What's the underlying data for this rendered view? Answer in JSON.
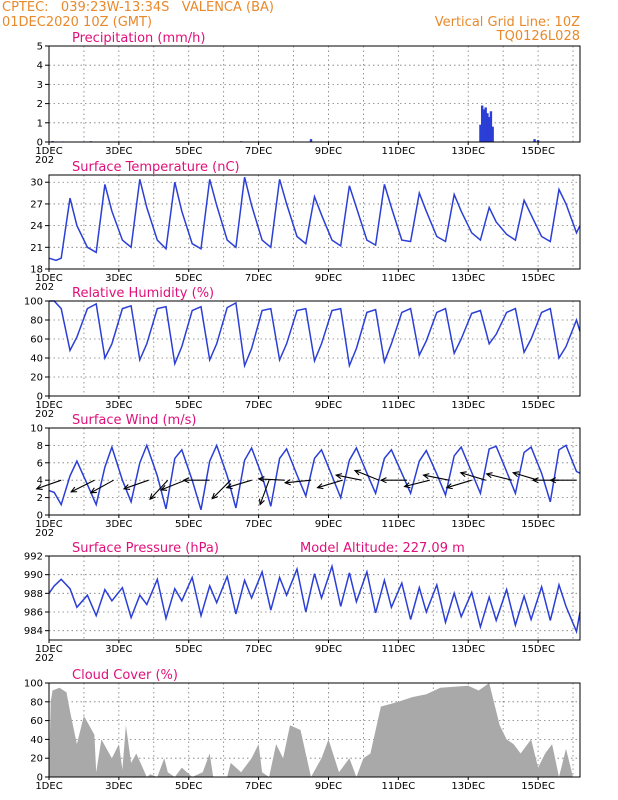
{
  "header": {
    "station": "CPTEC:   039:23W-13:34S   VALENCA (BA)",
    "date": "01DEC2020 10Z (GMT)",
    "grid_note": "Vertical Grid Line: 10Z",
    "model_id": "TQ0126L028"
  },
  "colors": {
    "line": "#2b3fd6",
    "cloud": "#a9a9a9",
    "title": "#e0107a",
    "header": "#e8892b",
    "arrow": "#000000"
  },
  "x_axis": {
    "labels": [
      "1DEC",
      "3DEC",
      "5DEC",
      "7DEC",
      "9DEC",
      "11DEC",
      "13DEC",
      "15DEC"
    ],
    "label_days": [
      0,
      2,
      4,
      6,
      8,
      10,
      12,
      14
    ],
    "range_days": [
      0,
      15.2
    ],
    "year_stub": "202"
  },
  "chart_data": [
    {
      "id": "precip",
      "type": "bar",
      "title": "Precipitation (mm/h)",
      "ylim": [
        0,
        5
      ],
      "yticks": [
        "0",
        "1",
        "2",
        "3",
        "4",
        "5"
      ],
      "x": [
        0.1,
        0.4,
        1.2,
        2.6,
        5.5,
        7.5,
        12.35,
        12.4,
        12.45,
        12.5,
        12.55,
        12.6,
        12.65,
        12.7,
        13.9,
        14.0
      ],
      "values": [
        0.05,
        0.03,
        0.04,
        0.03,
        0.04,
        0.15,
        0.9,
        1.9,
        1.7,
        1.8,
        1.5,
        1.3,
        1.6,
        0.8,
        0.15,
        0.1
      ]
    },
    {
      "id": "temp",
      "type": "line",
      "title": "Surface Temperature (nC)",
      "ylim": [
        18,
        31
      ],
      "yticks": [
        "18",
        "21",
        "24",
        "27",
        "30"
      ],
      "x": [
        0,
        0.2,
        0.35,
        0.6,
        0.8,
        1.1,
        1.35,
        1.6,
        1.8,
        2.1,
        2.35,
        2.6,
        2.8,
        3.1,
        3.35,
        3.6,
        3.8,
        4.1,
        4.35,
        4.6,
        4.8,
        5.1,
        5.35,
        5.6,
        5.8,
        6.1,
        6.35,
        6.6,
        6.8,
        7.1,
        7.35,
        7.6,
        7.8,
        8.1,
        8.35,
        8.6,
        8.8,
        9.1,
        9.35,
        9.6,
        9.8,
        10.1,
        10.35,
        10.6,
        10.8,
        11.1,
        11.35,
        11.6,
        11.8,
        12.1,
        12.35,
        12.6,
        12.8,
        13.1,
        13.35,
        13.6,
        13.8,
        14.1,
        14.35,
        14.6,
        14.8,
        15.1,
        15.2
      ],
      "values": [
        19.5,
        19.2,
        19.5,
        27.8,
        24,
        21,
        20.3,
        29.7,
        26,
        22,
        21,
        30.4,
        26.5,
        22,
        20.8,
        30,
        26,
        21.5,
        20.8,
        30.4,
        26.8,
        22,
        21,
        30.7,
        26.8,
        22,
        21,
        30.4,
        27,
        22.5,
        21.5,
        28,
        25.5,
        22,
        21.2,
        29.5,
        26.5,
        22,
        21.3,
        29.7,
        26.5,
        22,
        21.8,
        28.5,
        26,
        22.5,
        21.8,
        28.3,
        26,
        23,
        22,
        26.5,
        24.5,
        22.8,
        22,
        27.5,
        25.5,
        22.5,
        21.8,
        29,
        27,
        23,
        24
      ]
    },
    {
      "id": "rh",
      "type": "line",
      "title": "Relative Humidity (%)",
      "ylim": [
        0,
        100
      ],
      "yticks": [
        "0",
        "20",
        "40",
        "60",
        "80",
        "100"
      ],
      "x": [
        0,
        0.15,
        0.35,
        0.6,
        0.8,
        1.1,
        1.35,
        1.6,
        1.8,
        2.1,
        2.35,
        2.6,
        2.8,
        3.1,
        3.35,
        3.6,
        3.8,
        4.1,
        4.35,
        4.6,
        4.8,
        5.1,
        5.35,
        5.6,
        5.8,
        6.1,
        6.35,
        6.6,
        6.8,
        7.1,
        7.35,
        7.6,
        7.8,
        8.1,
        8.35,
        8.6,
        8.8,
        9.1,
        9.35,
        9.6,
        9.8,
        10.1,
        10.35,
        10.6,
        10.8,
        11.1,
        11.35,
        11.6,
        11.8,
        12.1,
        12.35,
        12.6,
        12.8,
        13.1,
        13.35,
        13.6,
        13.8,
        14.1,
        14.35,
        14.6,
        14.8,
        15.1,
        15.2
      ],
      "values": [
        100,
        100,
        92,
        48,
        62,
        92,
        97,
        40,
        55,
        92,
        95,
        38,
        55,
        92,
        94,
        34,
        52,
        90,
        94,
        38,
        55,
        93,
        98,
        32,
        50,
        90,
        92,
        38,
        55,
        90,
        92,
        37,
        55,
        90,
        92,
        32,
        50,
        88,
        91,
        36,
        55,
        88,
        92,
        43,
        58,
        88,
        92,
        45,
        60,
        87,
        90,
        55,
        65,
        88,
        92,
        46,
        60,
        88,
        92,
        40,
        52,
        80,
        68
      ]
    },
    {
      "id": "wind",
      "type": "line",
      "title": "Surface Wind (m/s)",
      "ylim": [
        0,
        10
      ],
      "yticks": [
        "0",
        "2",
        "4",
        "6",
        "8",
        "10"
      ],
      "x": [
        0,
        0.15,
        0.35,
        0.6,
        0.8,
        1.1,
        1.35,
        1.6,
        1.8,
        2.1,
        2.35,
        2.6,
        2.8,
        3.1,
        3.35,
        3.6,
        3.8,
        4.1,
        4.35,
        4.6,
        4.8,
        5.1,
        5.35,
        5.6,
        5.8,
        6.1,
        6.35,
        6.6,
        6.8,
        7.1,
        7.35,
        7.6,
        7.8,
        8.1,
        8.35,
        8.6,
        8.8,
        9.1,
        9.35,
        9.6,
        9.8,
        10.1,
        10.35,
        10.6,
        10.8,
        11.1,
        11.35,
        11.6,
        11.8,
        12.1,
        12.35,
        12.6,
        12.8,
        13.1,
        13.35,
        13.6,
        13.8,
        14.1,
        14.35,
        14.6,
        14.8,
        15.1,
        15.2
      ],
      "values": [
        2.8,
        2.6,
        1.2,
        4.5,
        6.2,
        3.5,
        1.2,
        5.5,
        7.8,
        4,
        1.5,
        6,
        8,
        4.5,
        0.7,
        6.5,
        7.5,
        4,
        0.6,
        6.2,
        8,
        4.5,
        0.8,
        6.3,
        7.7,
        4.5,
        1,
        6.5,
        7.6,
        4.6,
        2.2,
        6.5,
        7.5,
        4.5,
        2,
        6.3,
        7.7,
        4.8,
        2.5,
        6.5,
        7.5,
        4.8,
        2.5,
        6.2,
        7.4,
        4.7,
        2.3,
        6.8,
        7.8,
        4.9,
        2.5,
        7.6,
        7.9,
        5,
        2.5,
        7.2,
        7.8,
        4.8,
        1.5,
        7.5,
        8,
        5,
        4.8
      ],
      "arrows": [
        {
          "day": 0.35,
          "u": -1,
          "v": -0.35
        },
        {
          "day": 1.3,
          "u": -1,
          "v": -0.5
        },
        {
          "day": 1.85,
          "u": -1,
          "v": -0.55
        },
        {
          "day": 2.85,
          "u": -1,
          "v": -0.35
        },
        {
          "day": 3.4,
          "u": -0.7,
          "v": -0.75
        },
        {
          "day": 3.9,
          "u": -1,
          "v": -0.4
        },
        {
          "day": 4.6,
          "u": -1,
          "v": 0
        },
        {
          "day": 5.2,
          "u": -0.7,
          "v": -0.7
        },
        {
          "day": 5.8,
          "u": -1,
          "v": -0.3
        },
        {
          "day": 6.3,
          "u": -0.35,
          "v": -0.95
        },
        {
          "day": 6.75,
          "u": -1,
          "v": 0.05
        },
        {
          "day": 7.5,
          "u": -1,
          "v": -0.1
        },
        {
          "day": 8.4,
          "u": -1,
          "v": -0.3
        },
        {
          "day": 8.95,
          "u": -1,
          "v": 0.2
        },
        {
          "day": 9.45,
          "u": -1,
          "v": 0.4
        },
        {
          "day": 10.25,
          "u": -1,
          "v": 0
        },
        {
          "day": 10.9,
          "u": -1,
          "v": -0.25
        },
        {
          "day": 11.45,
          "u": -1,
          "v": 0.2
        },
        {
          "day": 12.1,
          "u": -1,
          "v": -0.3
        },
        {
          "day": 12.5,
          "u": -1,
          "v": 0.3
        },
        {
          "day": 13.25,
          "u": -1,
          "v": 0.25
        },
        {
          "day": 14.0,
          "u": -1,
          "v": 0.3
        },
        {
          "day": 14.6,
          "u": -1,
          "v": 0
        },
        {
          "day": 15.1,
          "u": -1,
          "v": 0
        }
      ]
    },
    {
      "id": "press",
      "type": "line",
      "title": "Surface Pressure (hPa)",
      "annotation": "Model Altitude: 227.09 m",
      "ylim": [
        983,
        992
      ],
      "yticks": [
        "984",
        "986",
        "988",
        "990",
        "992"
      ],
      "x": [
        0,
        0.15,
        0.35,
        0.6,
        0.8,
        1.1,
        1.35,
        1.6,
        1.8,
        2.1,
        2.35,
        2.6,
        2.8,
        3.1,
        3.35,
        3.6,
        3.8,
        4.1,
        4.35,
        4.6,
        4.8,
        5.1,
        5.35,
        5.6,
        5.8,
        6.1,
        6.35,
        6.6,
        6.8,
        7.1,
        7.35,
        7.6,
        7.8,
        8.1,
        8.35,
        8.6,
        8.8,
        9.1,
        9.35,
        9.6,
        9.8,
        10.1,
        10.35,
        10.6,
        10.8,
        11.1,
        11.35,
        11.6,
        11.8,
        12.1,
        12.35,
        12.6,
        12.8,
        13.1,
        13.35,
        13.6,
        13.8,
        14.1,
        14.35,
        14.6,
        14.8,
        15.1,
        15.2
      ],
      "values": [
        988,
        988.8,
        989.5,
        988.5,
        986.5,
        987.8,
        985.6,
        988.4,
        987.2,
        988.6,
        985.4,
        987.8,
        986.8,
        989.5,
        985.3,
        988.5,
        987.2,
        989.7,
        985.6,
        988.8,
        987,
        989.8,
        985.8,
        989.4,
        987.5,
        990.3,
        986.2,
        989.7,
        987.8,
        990.6,
        986,
        990.1,
        987.5,
        990.9,
        986.6,
        990.2,
        987.1,
        990.3,
        985.9,
        989.4,
        986.5,
        989.1,
        985.2,
        988.6,
        986,
        988.9,
        984.9,
        988,
        985.5,
        988.1,
        984.4,
        987.6,
        985.1,
        988.4,
        984.6,
        987.7,
        985.2,
        988.7,
        985.1,
        988.9,
        986.6,
        983.9,
        986
      ]
    },
    {
      "id": "cloud",
      "type": "area",
      "title": "Cloud Cover (%)",
      "ylim": [
        0,
        100
      ],
      "yticks": [
        "0",
        "20",
        "40",
        "60",
        "80",
        "100"
      ],
      "x": [
        0,
        0.05,
        0.1,
        0.3,
        0.5,
        0.6,
        0.8,
        1.0,
        1.3,
        1.35,
        1.5,
        1.8,
        2.0,
        2.1,
        2.2,
        2.35,
        2.5,
        2.8,
        2.9,
        3.1,
        3.3,
        3.4,
        3.6,
        3.8,
        4.1,
        4.4,
        4.6,
        4.7,
        4.9,
        5.1,
        5.2,
        5.5,
        5.8,
        6.0,
        6.1,
        6.3,
        6.5,
        6.7,
        6.9,
        7.2,
        7.5,
        7.8,
        8.0,
        8.3,
        8.6,
        8.8,
        9.0,
        9.2,
        9.5,
        9.8,
        10.0,
        10.4,
        10.8,
        11.2,
        11.6,
        12.0,
        12.3,
        12.6,
        12.8,
        12.9,
        13.1,
        13.3,
        13.5,
        13.8,
        14.0,
        14.2,
        14.4,
        14.6,
        14.8,
        15.0,
        15.2
      ],
      "values": [
        0,
        80,
        92,
        95,
        90,
        70,
        35,
        65,
        45,
        5,
        40,
        20,
        35,
        8,
        55,
        15,
        25,
        0,
        3,
        0,
        20,
        5,
        0,
        10,
        0,
        5,
        25,
        0,
        0,
        0,
        15,
        5,
        20,
        35,
        5,
        0,
        35,
        20,
        55,
        50,
        0,
        20,
        40,
        5,
        20,
        0,
        20,
        25,
        75,
        78,
        80,
        85,
        88,
        95,
        96,
        97,
        92,
        100,
        70,
        55,
        40,
        35,
        25,
        40,
        10,
        25,
        35,
        0,
        30,
        0,
        0
      ]
    }
  ]
}
